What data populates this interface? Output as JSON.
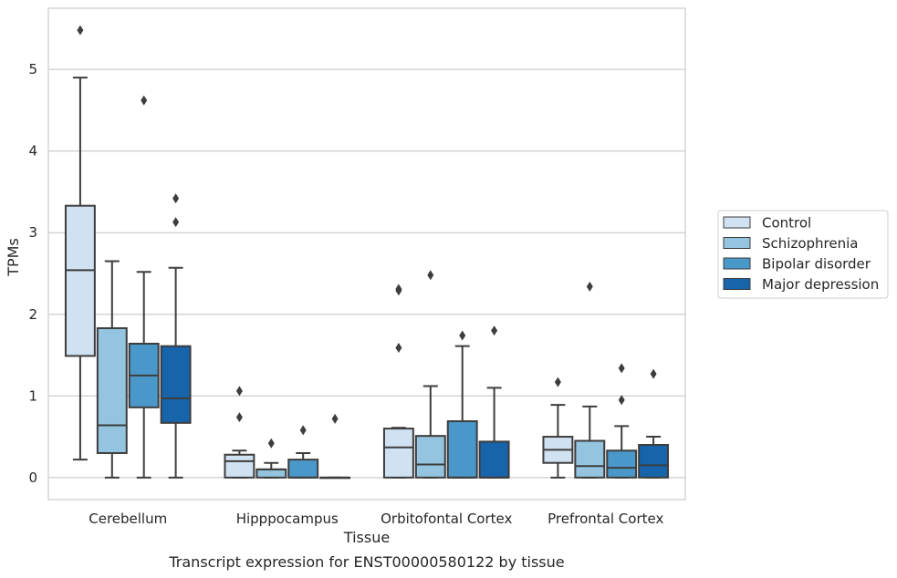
{
  "chart_data": {
    "type": "box",
    "title": "Transcript expression for ENST00000580122 by tissue",
    "xlabel": "Tissue",
    "ylabel": "TPMs",
    "ylim": [
      -0.27,
      5.75
    ],
    "yticks": [
      0,
      1,
      2,
      3,
      4,
      5
    ],
    "grid": "horizontal",
    "legend_position": "right",
    "categories": [
      "Cerebellum",
      "Hipppocampus",
      "Orbitofontal Cortex",
      "Prefrontal Cortex"
    ],
    "series": [
      {
        "name": "Control",
        "color": "#d0e1f2",
        "boxes": [
          {
            "whislo": 0.22,
            "q1": 1.49,
            "med": 2.54,
            "q3": 3.33,
            "whishi": 4.9,
            "fliers": [
              5.48
            ]
          },
          {
            "whislo": 0.0,
            "q1": 0.0,
            "med": 0.2,
            "q3": 0.28,
            "whishi": 0.33,
            "fliers": [
              0.74,
              1.06
            ]
          },
          {
            "whislo": 0.0,
            "q1": 0.0,
            "med": 0.37,
            "q3": 0.6,
            "whishi": 0.61,
            "fliers": [
              1.59,
              2.29,
              2.31
            ]
          },
          {
            "whislo": 0.0,
            "q1": 0.18,
            "med": 0.34,
            "q3": 0.5,
            "whishi": 0.89,
            "fliers": [
              1.17
            ]
          }
        ]
      },
      {
        "name": "Schizophrenia",
        "color": "#94c4df",
        "boxes": [
          {
            "whislo": 0.0,
            "q1": 0.3,
            "med": 0.64,
            "q3": 1.83,
            "whishi": 2.65,
            "fliers": []
          },
          {
            "whislo": 0.0,
            "q1": 0.0,
            "med": 0.1,
            "q3": 0.1,
            "whishi": 0.18,
            "fliers": [
              0.42
            ]
          },
          {
            "whislo": 0.0,
            "q1": 0.0,
            "med": 0.16,
            "q3": 0.51,
            "whishi": 1.12,
            "fliers": [
              2.48
            ]
          },
          {
            "whislo": 0.0,
            "q1": 0.0,
            "med": 0.14,
            "q3": 0.45,
            "whishi": 0.87,
            "fliers": [
              2.34
            ]
          }
        ]
      },
      {
        "name": "Bipolar disorder",
        "color": "#4a98c9",
        "boxes": [
          {
            "whislo": 0.0,
            "q1": 0.86,
            "med": 1.25,
            "q3": 1.64,
            "whishi": 2.52,
            "fliers": [
              4.62
            ]
          },
          {
            "whislo": 0.0,
            "q1": 0.0,
            "med": 0.0,
            "q3": 0.22,
            "whishi": 0.3,
            "fliers": [
              0.58
            ]
          },
          {
            "whislo": 0.0,
            "q1": 0.0,
            "med": 0.0,
            "q3": 0.69,
            "whishi": 1.61,
            "fliers": [
              1.74
            ]
          },
          {
            "whislo": 0.0,
            "q1": 0.0,
            "med": 0.12,
            "q3": 0.33,
            "whishi": 0.63,
            "fliers": [
              0.95,
              1.34
            ]
          }
        ]
      },
      {
        "name": "Major depression",
        "color": "#1764ab",
        "boxes": [
          {
            "whislo": 0.0,
            "q1": 0.67,
            "med": 0.97,
            "q3": 1.61,
            "whishi": 2.57,
            "fliers": [
              3.13,
              3.42
            ]
          },
          {
            "whislo": 0.0,
            "q1": 0.0,
            "med": 0.0,
            "q3": 0.0,
            "whishi": 0.0,
            "fliers": [
              0.72
            ]
          },
          {
            "whislo": 0.0,
            "q1": 0.0,
            "med": 0.0,
            "q3": 0.44,
            "whishi": 1.1,
            "fliers": [
              1.8
            ]
          },
          {
            "whislo": 0.0,
            "q1": 0.0,
            "med": 0.15,
            "q3": 0.4,
            "whishi": 0.5,
            "fliers": [
              1.27
            ]
          }
        ]
      }
    ]
  }
}
